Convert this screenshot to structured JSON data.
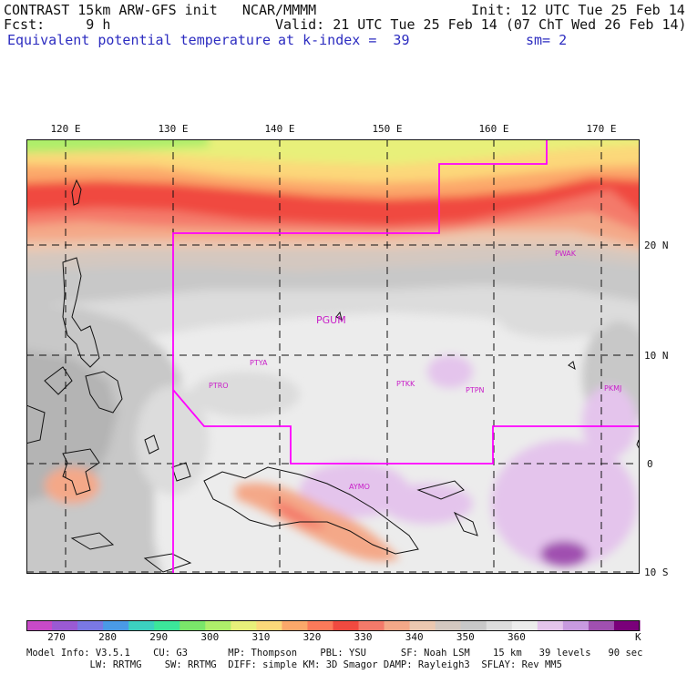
{
  "header": {
    "line1_left": "CONTRAST 15km ARW-GFS init   NCAR/MMMM",
    "line1_right": "Init: 12 UTC Tue 25 Feb 14",
    "line2_left": "Fcst:     9 h",
    "line2_right": "Valid: 21 UTC Tue 25 Feb 14 (07 ChT Wed 26 Feb 14)",
    "line3_field": "Equivalent potential temperature",
    "line3_level": "at k-index =  39",
    "line3_sm": "sm= 2"
  },
  "map": {
    "region": "Western Pacific",
    "lon_labels": [
      "120 E",
      "130 E",
      "140 E",
      "150 E",
      "160 E",
      "170 E"
    ],
    "lat_labels": [
      "20 N",
      "10 N",
      "0",
      "10 S"
    ],
    "stations": [
      "PWAK",
      "PGUM",
      "PTYA",
      "PTRO",
      "PTKK",
      "PTPN",
      "PKMJ",
      "AYMO"
    ],
    "boundary_color": "#ff00ff"
  },
  "colorbar": {
    "labels": [
      "270",
      "280",
      "290",
      "300",
      "310",
      "320",
      "330",
      "340",
      "350",
      "360"
    ],
    "unit": "K",
    "colors": [
      "#c84ac8",
      "#9a5ad4",
      "#7a78e4",
      "#4a9ae6",
      "#3cd0c0",
      "#3ce69a",
      "#7ae66a",
      "#aeee6a",
      "#e8f07a",
      "#fcd87a",
      "#fca86a",
      "#fc7a5a",
      "#f04a40",
      "#f47a6a",
      "#f4a888",
      "#ecc8b0",
      "#d4c8c0",
      "#c8c8c8",
      "#dcdcdc",
      "#ececec",
      "#e4c4ec",
      "#c89ae0",
      "#a050b0",
      "#7a007a"
    ]
  },
  "model_info": {
    "line1": "Model Info: V3.5.1    CU: G3       MP: Thompson    PBL: YSU      SF: Noah LSM    15 km   39 levels   90 sec",
    "line2": "           LW: RRTMG    SW: RRTMG  DIFF: simple KM: 3D Smagor DAMP: Rayleigh3  SFLAY: Rev MM5"
  }
}
